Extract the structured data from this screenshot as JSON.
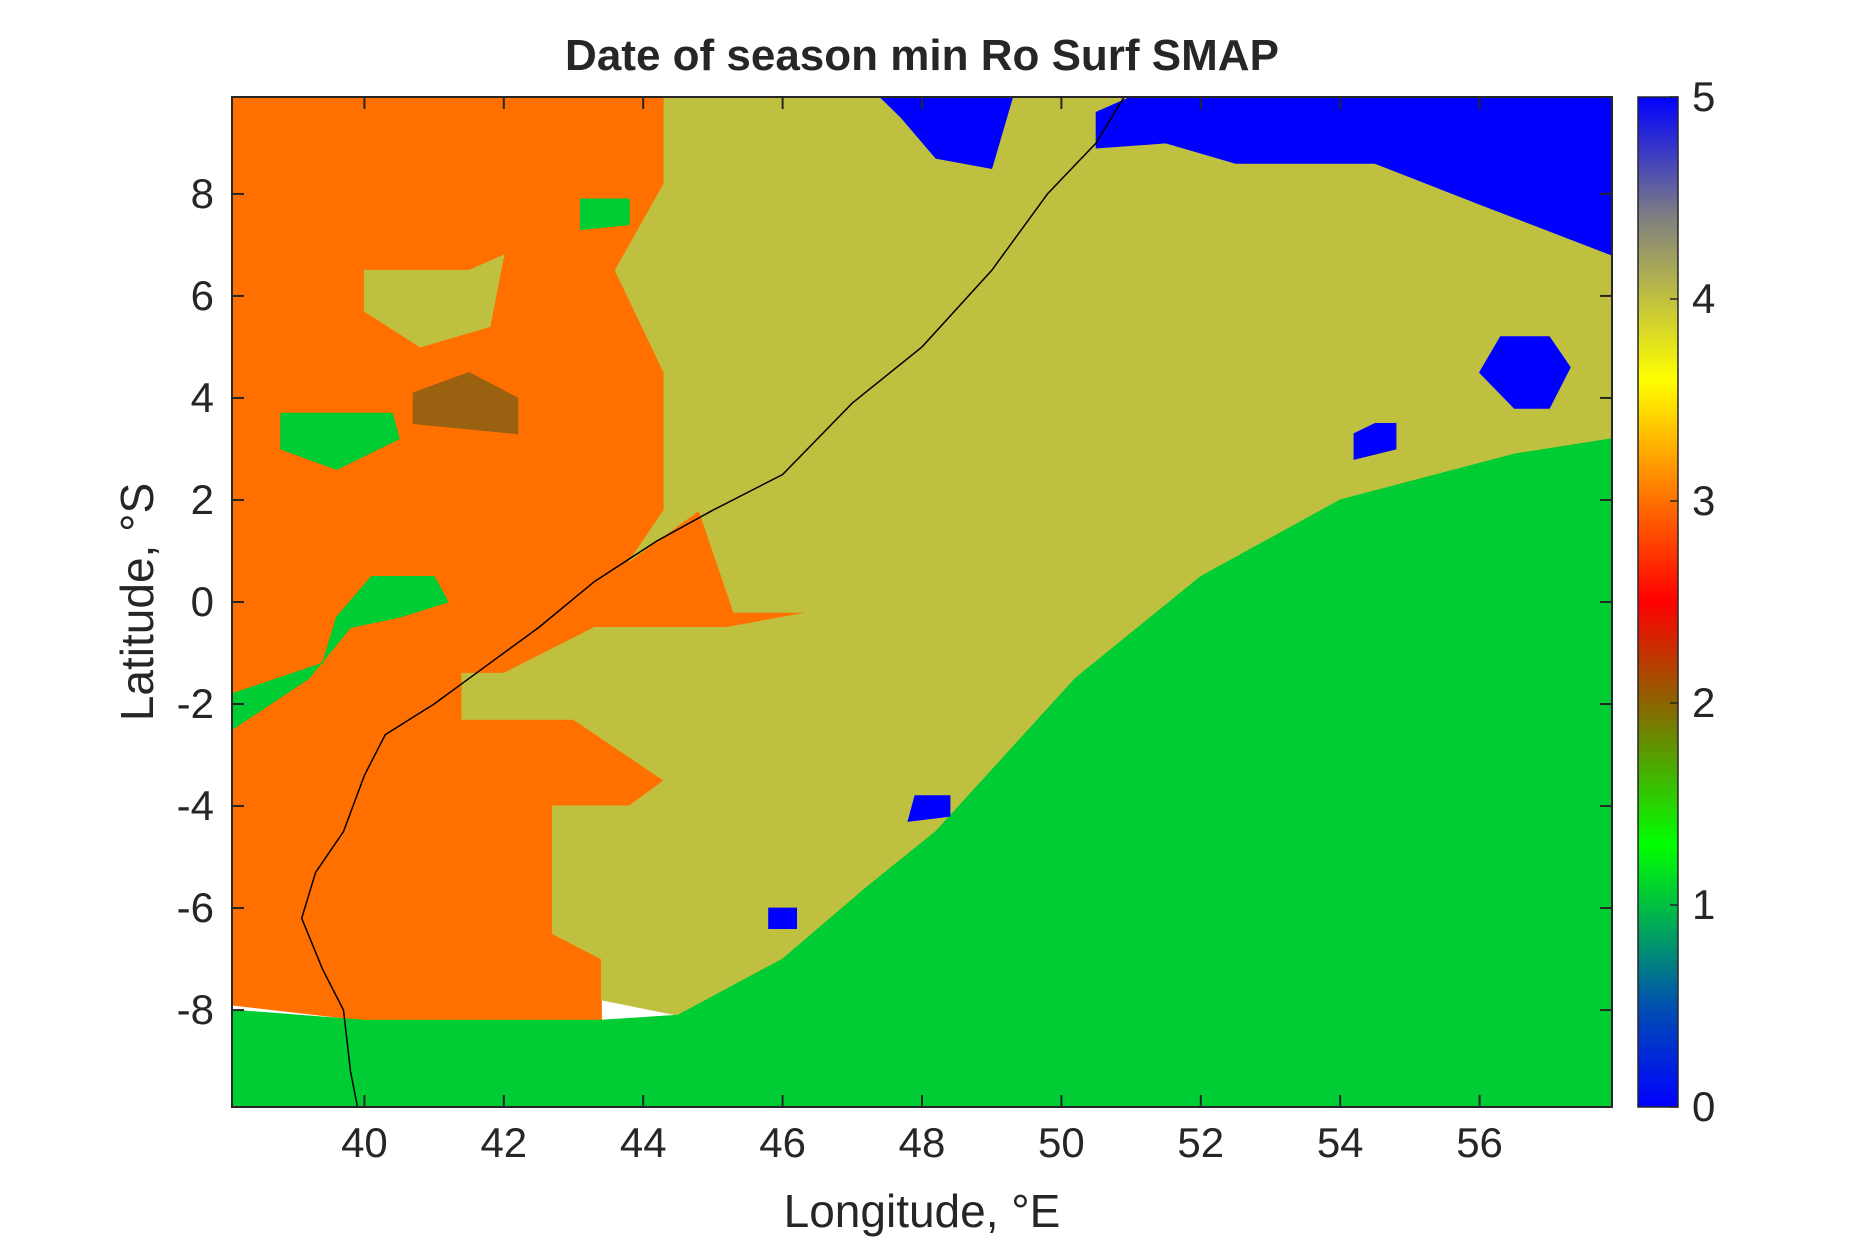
{
  "chart_data": {
    "type": "heatmap",
    "title": "Date of season min Ro Surf SMAP",
    "xlabel": "Longitude, °E",
    "ylabel": "Latitude, °S",
    "xlim": [
      38.1,
      57.9
    ],
    "ylim": [
      -9.9,
      9.9
    ],
    "x_ticks": [
      40,
      42,
      44,
      46,
      48,
      50,
      52,
      54,
      56
    ],
    "y_ticks": [
      8,
      6,
      4,
      2,
      0,
      -2,
      -4,
      -6,
      -8
    ],
    "x_tick_labels": [
      "40",
      "42",
      "44",
      "46",
      "48",
      "50",
      "52",
      "54",
      "56"
    ],
    "y_tick_labels": [
      "8",
      "6",
      "4",
      "2",
      "0",
      "-2",
      "-4",
      "-6",
      "-8"
    ],
    "colorbar": {
      "range": [
        0,
        5
      ],
      "ticks": [
        0,
        1,
        2,
        3,
        4,
        5
      ],
      "tick_labels": [
        "0",
        "1",
        "2",
        "3",
        "4",
        "5"
      ],
      "stops": [
        {
          "v": 0.0,
          "color": "#0000ff"
        },
        {
          "v": 0.5,
          "color": "#0050b0"
        },
        {
          "v": 1.0,
          "color": "#00c040"
        },
        {
          "v": 1.3,
          "color": "#00ff00"
        },
        {
          "v": 2.0,
          "color": "#8c6400"
        },
        {
          "v": 2.5,
          "color": "#ff0000"
        },
        {
          "v": 3.0,
          "color": "#ff7000"
        },
        {
          "v": 3.6,
          "color": "#ffff00"
        },
        {
          "v": 4.0,
          "color": "#c0c040"
        },
        {
          "v": 4.4,
          "color": "#808080"
        },
        {
          "v": 5.0,
          "color": "#0000ff"
        }
      ]
    },
    "regions": [
      {
        "name": "west-orange",
        "value": 3.0,
        "color": "#ff7000",
        "lonlat": [
          [
            38.1,
            9.9
          ],
          [
            44.3,
            9.9
          ],
          [
            44.3,
            8.2
          ],
          [
            43.6,
            6.5
          ],
          [
            44.3,
            4.5
          ],
          [
            44.3,
            1.8
          ],
          [
            43.8,
            0.8
          ],
          [
            44.8,
            1.8
          ],
          [
            45.3,
            -0.2
          ],
          [
            46.4,
            -0.2
          ],
          [
            45.2,
            -0.5
          ],
          [
            43.3,
            -0.5
          ],
          [
            42.0,
            -1.4
          ],
          [
            41.4,
            -1.4
          ],
          [
            41.4,
            -2.3
          ],
          [
            43.0,
            -2.3
          ],
          [
            44.3,
            -3.5
          ],
          [
            43.8,
            -4.0
          ],
          [
            42.7,
            -4.0
          ],
          [
            42.7,
            -6.5
          ],
          [
            43.4,
            -7.0
          ],
          [
            43.4,
            -8.2
          ],
          [
            40.0,
            -8.2
          ],
          [
            38.1,
            -7.9
          ]
        ]
      },
      {
        "name": "olive-main",
        "value": 4.0,
        "color": "#c0c040",
        "lonlat": [
          [
            44.3,
            9.9
          ],
          [
            57.9,
            9.9
          ],
          [
            57.9,
            3.2
          ],
          [
            56.5,
            2.9
          ],
          [
            54.0,
            2.0
          ],
          [
            52.0,
            0.5
          ],
          [
            50.2,
            -1.5
          ],
          [
            48.2,
            -4.5
          ],
          [
            47.2,
            -5.6
          ],
          [
            46.0,
            -7.0
          ],
          [
            44.5,
            -8.1
          ],
          [
            43.4,
            -7.8
          ],
          [
            43.4,
            -7.0
          ],
          [
            42.7,
            -6.5
          ],
          [
            42.7,
            -4.0
          ],
          [
            43.8,
            -4.0
          ],
          [
            44.3,
            -3.5
          ],
          [
            43.0,
            -2.3
          ],
          [
            41.4,
            -2.3
          ],
          [
            41.4,
            -1.4
          ],
          [
            42.0,
            -1.4
          ],
          [
            43.3,
            -0.5
          ],
          [
            45.2,
            -0.5
          ],
          [
            46.4,
            -0.2
          ],
          [
            45.3,
            -0.2
          ],
          [
            44.8,
            1.8
          ],
          [
            43.8,
            0.8
          ],
          [
            44.3,
            1.8
          ],
          [
            44.3,
            4.5
          ],
          [
            43.6,
            6.5
          ],
          [
            44.3,
            8.2
          ]
        ]
      },
      {
        "name": "south-green",
        "value": 1.0,
        "color": "#00cc33",
        "lonlat": [
          [
            57.9,
            3.2
          ],
          [
            57.9,
            -9.9
          ],
          [
            38.1,
            -9.9
          ],
          [
            38.1,
            -8.0
          ],
          [
            40.0,
            -8.2
          ],
          [
            43.4,
            -8.2
          ],
          [
            44.5,
            -8.1
          ],
          [
            46.0,
            -7.0
          ],
          [
            47.2,
            -5.6
          ],
          [
            48.2,
            -4.5
          ],
          [
            50.2,
            -1.5
          ],
          [
            52.0,
            0.5
          ],
          [
            54.0,
            2.0
          ],
          [
            56.5,
            2.9
          ]
        ]
      },
      {
        "name": "ne-blue-1",
        "value": 5.0,
        "color": "#0000ff",
        "lonlat": [
          [
            51.0,
            9.9
          ],
          [
            57.9,
            9.9
          ],
          [
            57.9,
            6.8
          ],
          [
            56.0,
            7.8
          ],
          [
            54.5,
            8.6
          ],
          [
            52.5,
            8.6
          ],
          [
            51.5,
            9.0
          ],
          [
            50.5,
            8.9
          ],
          [
            50.5,
            9.6
          ]
        ]
      },
      {
        "name": "ne-blue-2",
        "value": 5.0,
        "color": "#0000ff",
        "lonlat": [
          [
            47.4,
            9.9
          ],
          [
            49.3,
            9.9
          ],
          [
            49.0,
            8.5
          ],
          [
            48.2,
            8.7
          ],
          [
            47.7,
            9.5
          ]
        ]
      },
      {
        "name": "blue-patch-e",
        "value": 5.0,
        "color": "#0000ff",
        "lonlat": [
          [
            56.3,
            5.2
          ],
          [
            57.0,
            5.2
          ],
          [
            57.3,
            4.6
          ],
          [
            57.0,
            3.8
          ],
          [
            56.5,
            3.8
          ],
          [
            56.0,
            4.5
          ]
        ]
      },
      {
        "name": "blue-patch-c",
        "value": 5.0,
        "color": "#0000ff",
        "lonlat": [
          [
            54.5,
            3.5
          ],
          [
            54.8,
            3.5
          ],
          [
            54.8,
            3.0
          ],
          [
            54.2,
            2.8
          ],
          [
            54.2,
            3.3
          ]
        ]
      },
      {
        "name": "blue-patch-s1",
        "value": 5.0,
        "color": "#0000ff",
        "lonlat": [
          [
            47.9,
            -3.8
          ],
          [
            48.4,
            -3.8
          ],
          [
            48.4,
            -4.2
          ],
          [
            47.8,
            -4.3
          ]
        ]
      },
      {
        "name": "blue-patch-s2",
        "value": 5.0,
        "color": "#0000ff",
        "lonlat": [
          [
            45.8,
            -6.0
          ],
          [
            46.2,
            -6.0
          ],
          [
            46.2,
            -6.4
          ],
          [
            45.8,
            -6.4
          ]
        ]
      },
      {
        "name": "brown-patch",
        "value": 2.0,
        "color": "#9a6210",
        "lonlat": [
          [
            40.7,
            4.1
          ],
          [
            41.5,
            4.5
          ],
          [
            42.2,
            4.0
          ],
          [
            42.2,
            3.3
          ],
          [
            40.7,
            3.5
          ]
        ]
      },
      {
        "name": "olive-island",
        "value": 4.0,
        "color": "#c0c040",
        "lonlat": [
          [
            40.0,
            6.5
          ],
          [
            41.5,
            6.5
          ],
          [
            42.0,
            6.8
          ],
          [
            41.8,
            5.4
          ],
          [
            40.8,
            5.0
          ],
          [
            40.0,
            5.7
          ]
        ]
      },
      {
        "name": "green-patch-1",
        "value": 1.0,
        "color": "#00cc33",
        "lonlat": [
          [
            38.8,
            3.7
          ],
          [
            40.4,
            3.7
          ],
          [
            40.5,
            3.2
          ],
          [
            39.6,
            2.6
          ],
          [
            38.8,
            3.0
          ]
        ]
      },
      {
        "name": "green-patch-2",
        "value": 1.0,
        "color": "#00cc33",
        "lonlat": [
          [
            40.1,
            0.5
          ],
          [
            41.0,
            0.5
          ],
          [
            41.2,
            0.0
          ],
          [
            40.5,
            -0.3
          ],
          [
            39.8,
            -0.5
          ],
          [
            39.2,
            -1.5
          ],
          [
            38.1,
            -2.5
          ],
          [
            38.1,
            -1.8
          ],
          [
            39.4,
            -1.2
          ],
          [
            39.6,
            -0.3
          ]
        ]
      },
      {
        "name": "green-patch-3",
        "value": 1.0,
        "color": "#00cc33",
        "lonlat": [
          [
            43.1,
            7.9
          ],
          [
            43.8,
            7.9
          ],
          [
            43.8,
            7.4
          ],
          [
            43.1,
            7.3
          ]
        ]
      }
    ],
    "coastline": [
      [
        50.9,
        9.9
      ],
      [
        50.5,
        9.0
      ],
      [
        49.8,
        8.0
      ],
      [
        49.0,
        6.5
      ],
      [
        48.0,
        5.0
      ],
      [
        47.0,
        3.9
      ],
      [
        46.0,
        2.5
      ],
      [
        45.0,
        1.8
      ],
      [
        44.2,
        1.2
      ],
      [
        43.3,
        0.4
      ],
      [
        42.5,
        -0.5
      ],
      [
        41.8,
        -1.2
      ],
      [
        41.0,
        -2.0
      ],
      [
        40.3,
        -2.6
      ],
      [
        40.0,
        -3.4
      ],
      [
        39.7,
        -4.5
      ],
      [
        39.3,
        -5.3
      ],
      [
        39.1,
        -6.2
      ],
      [
        39.4,
        -7.2
      ],
      [
        39.7,
        -8.0
      ],
      [
        39.8,
        -9.2
      ],
      [
        39.9,
        -9.9
      ]
    ]
  }
}
